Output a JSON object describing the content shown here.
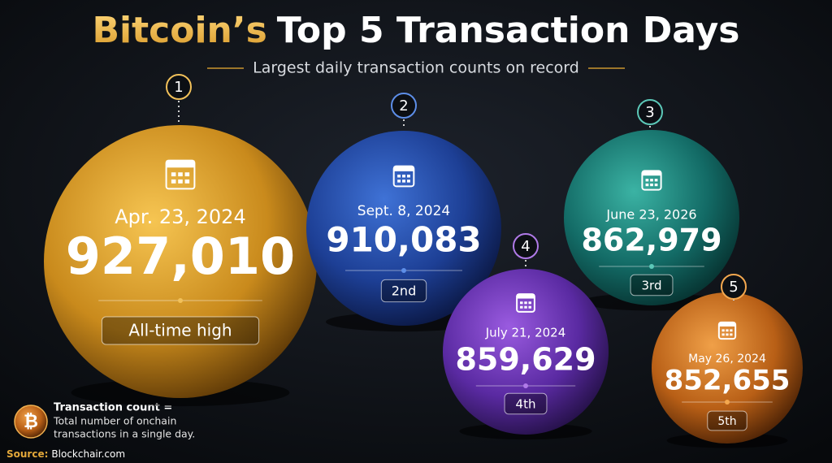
{
  "header": {
    "title_accent": "Bitcoin’s",
    "title_rest": "Top 5 Transaction Days",
    "subtitle": "Largest daily transaction counts on record"
  },
  "items": [
    {
      "rank": "1",
      "date": "Apr. 23, 2024",
      "count": "927,010",
      "badge": "All-time high"
    },
    {
      "rank": "2",
      "date": "Sept. 8, 2024",
      "count": "910,083",
      "badge": "2nd"
    },
    {
      "rank": "3",
      "date": "June 23, 2026",
      "count": "862,979",
      "badge": "3rd"
    },
    {
      "rank": "4",
      "date": "July 21, 2024",
      "count": "859,629",
      "badge": "4th"
    },
    {
      "rank": "5",
      "date": "May 26, 2024",
      "count": "852,655",
      "badge": "5th"
    }
  ],
  "legend": {
    "term": "Transaction count =",
    "lines": [
      "Total number of onchain",
      "transactions in a single day."
    ]
  },
  "source": {
    "label": "Source:",
    "text": "Blockchair.com"
  }
}
